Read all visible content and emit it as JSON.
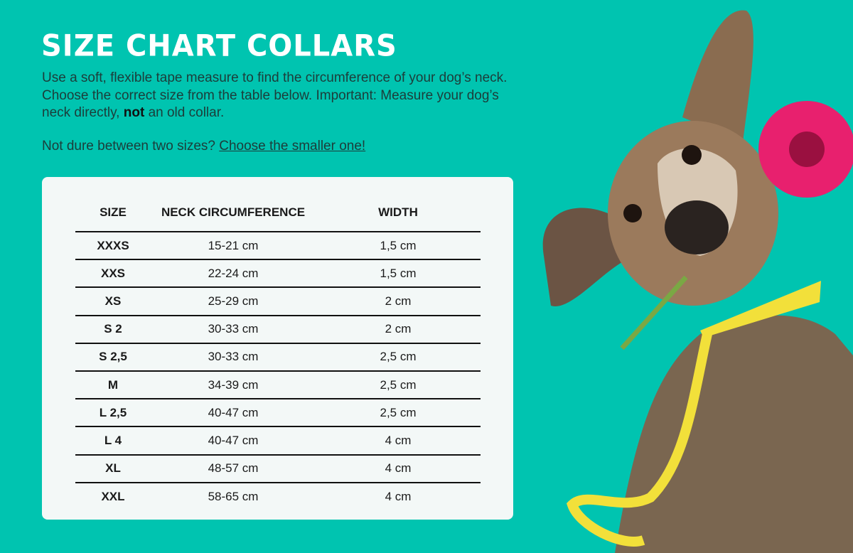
{
  "title": "SIZE CHART COLLARS",
  "intro": {
    "text_before": "Use a soft, flexible tape measure to find the circumference of your dog’s neck. Choose the correct size from the table below. Important: Measure your dog’s neck directly, ",
    "bold": "not",
    "text_after": " an old collar."
  },
  "note": {
    "text": "Not dure between two sizes? ",
    "link": "Choose the smaller one!"
  },
  "table": {
    "headers": [
      "SIZE",
      "NECK CIRCUMFERENCE",
      "WIDTH"
    ],
    "rows": [
      [
        "XXXS",
        "15-21 cm",
        "1,5 cm"
      ],
      [
        "XXS",
        "22-24 cm",
        "1,5 cm"
      ],
      [
        "XS",
        "25-29 cm",
        "2 cm"
      ],
      [
        "S 2",
        "30-33 cm",
        "2 cm"
      ],
      [
        "S 2,5",
        "30-33 cm",
        "2,5 cm"
      ],
      [
        "M",
        "34-39 cm",
        "2,5 cm"
      ],
      [
        "L 2,5",
        "40-47 cm",
        "2,5 cm"
      ],
      [
        "L 4",
        "40-47 cm",
        "4 cm"
      ],
      [
        "XL",
        "48-57 cm",
        "4 cm"
      ],
      [
        "XXL",
        "58-65 cm",
        "4 cm"
      ]
    ]
  },
  "colors": {
    "background": "#00c4b0",
    "card": "#f3f8f7",
    "text": "#1c3d3a"
  }
}
